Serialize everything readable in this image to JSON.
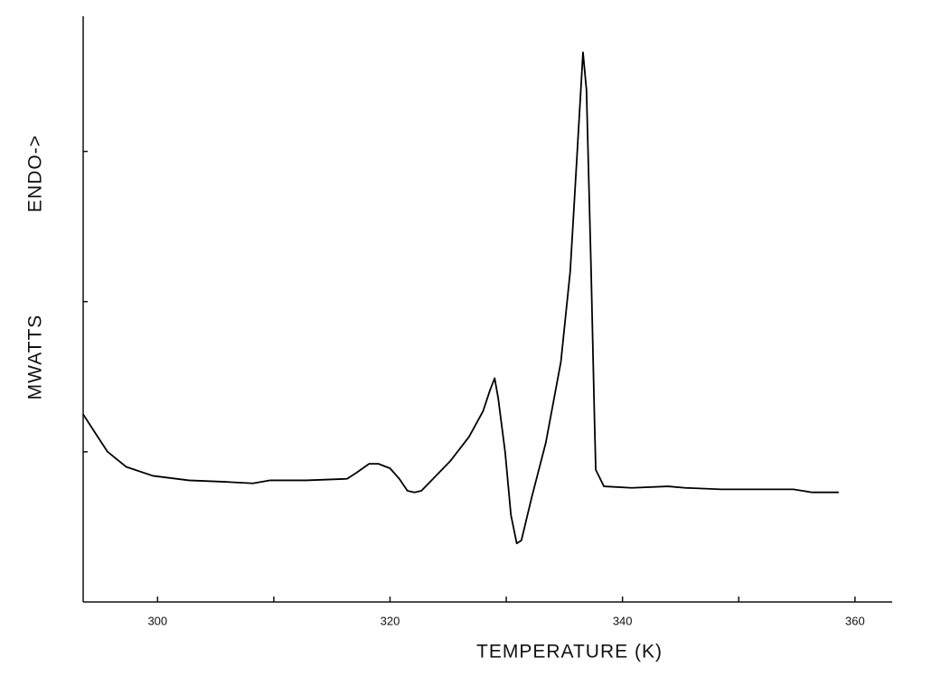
{
  "chart_data": {
    "type": "line",
    "xlabel": "TEMPERATURE (K)",
    "ylabel": "MWATTS",
    "ylabel_top": "ENDO->",
    "xlim": [
      293.6,
      363.2
    ],
    "xticks": [
      300,
      320,
      340,
      360
    ],
    "minor_xticks": [
      310,
      330,
      350
    ],
    "ylim": [
      0,
      3.9
    ],
    "yticks": [
      1,
      2,
      3
    ],
    "x": [
      293.6,
      294.6,
      295.7,
      297.3,
      299.6,
      302.7,
      305.8,
      308.2,
      309.7,
      312.8,
      316.3,
      317.1,
      318.2,
      319.0,
      320.0,
      320.8,
      321.5,
      322.1,
      322.7,
      323.7,
      325.2,
      326.8,
      328.0,
      328.6,
      329.0,
      329.3,
      329.9,
      330.4,
      330.9,
      331.3,
      332.2,
      333.4,
      334.7,
      335.5,
      336.1,
      336.6,
      336.9,
      337.3,
      337.6,
      337.7,
      338.4,
      340.8,
      343.9,
      345.4,
      348.5,
      352.4,
      354.7,
      356.3,
      358.6
    ],
    "series": [
      {
        "color": "#000000",
        "values": [
          1.25,
          1.13,
          1.0,
          0.9,
          0.84,
          0.81,
          0.8,
          0.79,
          0.81,
          0.81,
          0.82,
          0.86,
          0.92,
          0.92,
          0.89,
          0.82,
          0.74,
          0.73,
          0.74,
          0.82,
          0.94,
          1.1,
          1.27,
          1.41,
          1.49,
          1.36,
          1.0,
          0.58,
          0.39,
          0.41,
          0.7,
          1.06,
          1.6,
          2.2,
          2.99,
          3.66,
          3.41,
          2.2,
          1.18,
          0.88,
          0.77,
          0.76,
          0.77,
          0.76,
          0.75,
          0.75,
          0.75,
          0.73,
          0.73
        ]
      }
    ]
  }
}
